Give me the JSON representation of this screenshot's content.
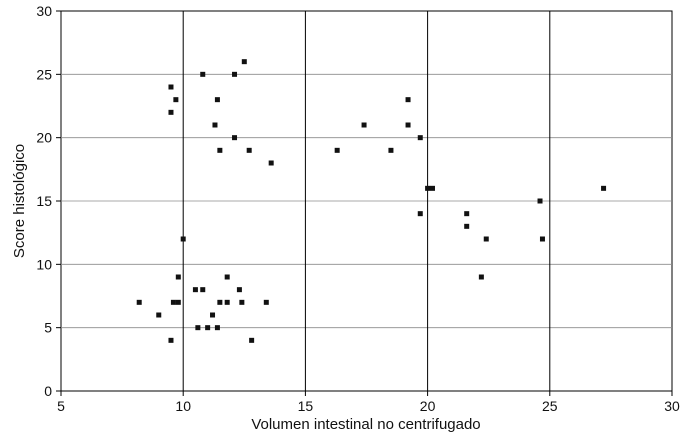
{
  "chart_data": {
    "type": "scatter",
    "title": "",
    "xlabel": "Volumen intestinal no centrifugado",
    "ylabel": "Score histológico",
    "xlim": [
      5,
      30
    ],
    "ylim": [
      0,
      30
    ],
    "x_ticks": [
      5,
      10,
      15,
      20,
      25,
      30
    ],
    "y_ticks": [
      0,
      5,
      10,
      15,
      20,
      25,
      30
    ],
    "grid": "on",
    "legend": "none",
    "marker": "square",
    "marker_color": "#111111",
    "points": [
      {
        "x": 8.2,
        "y": 7
      },
      {
        "x": 9.0,
        "y": 6
      },
      {
        "x": 9.5,
        "y": 4
      },
      {
        "x": 9.6,
        "y": 7
      },
      {
        "x": 9.8,
        "y": 7
      },
      {
        "x": 9.8,
        "y": 9
      },
      {
        "x": 10.0,
        "y": 12
      },
      {
        "x": 10.5,
        "y": 8
      },
      {
        "x": 10.6,
        "y": 5
      },
      {
        "x": 10.8,
        "y": 8
      },
      {
        "x": 11.0,
        "y": 5
      },
      {
        "x": 11.2,
        "y": 6
      },
      {
        "x": 11.4,
        "y": 5
      },
      {
        "x": 11.5,
        "y": 7
      },
      {
        "x": 11.8,
        "y": 7
      },
      {
        "x": 11.8,
        "y": 9
      },
      {
        "x": 12.3,
        "y": 8
      },
      {
        "x": 12.4,
        "y": 7
      },
      {
        "x": 12.8,
        "y": 4
      },
      {
        "x": 13.4,
        "y": 7
      },
      {
        "x": 9.5,
        "y": 24
      },
      {
        "x": 9.5,
        "y": 22
      },
      {
        "x": 9.7,
        "y": 23
      },
      {
        "x": 10.8,
        "y": 25
      },
      {
        "x": 11.3,
        "y": 21
      },
      {
        "x": 11.4,
        "y": 23
      },
      {
        "x": 11.5,
        "y": 19
      },
      {
        "x": 12.1,
        "y": 20
      },
      {
        "x": 12.1,
        "y": 25
      },
      {
        "x": 12.5,
        "y": 26
      },
      {
        "x": 12.7,
        "y": 19
      },
      {
        "x": 13.6,
        "y": 18
      },
      {
        "x": 16.3,
        "y": 19
      },
      {
        "x": 17.4,
        "y": 21
      },
      {
        "x": 18.5,
        "y": 19
      },
      {
        "x": 19.2,
        "y": 23
      },
      {
        "x": 19.2,
        "y": 21
      },
      {
        "x": 19.7,
        "y": 20
      },
      {
        "x": 19.7,
        "y": 14
      },
      {
        "x": 20.0,
        "y": 16
      },
      {
        "x": 20.2,
        "y": 16
      },
      {
        "x": 21.6,
        "y": 14
      },
      {
        "x": 21.6,
        "y": 13
      },
      {
        "x": 22.2,
        "y": 9
      },
      {
        "x": 22.4,
        "y": 12
      },
      {
        "x": 24.6,
        "y": 15
      },
      {
        "x": 24.7,
        "y": 12
      },
      {
        "x": 27.2,
        "y": 16
      }
    ]
  }
}
